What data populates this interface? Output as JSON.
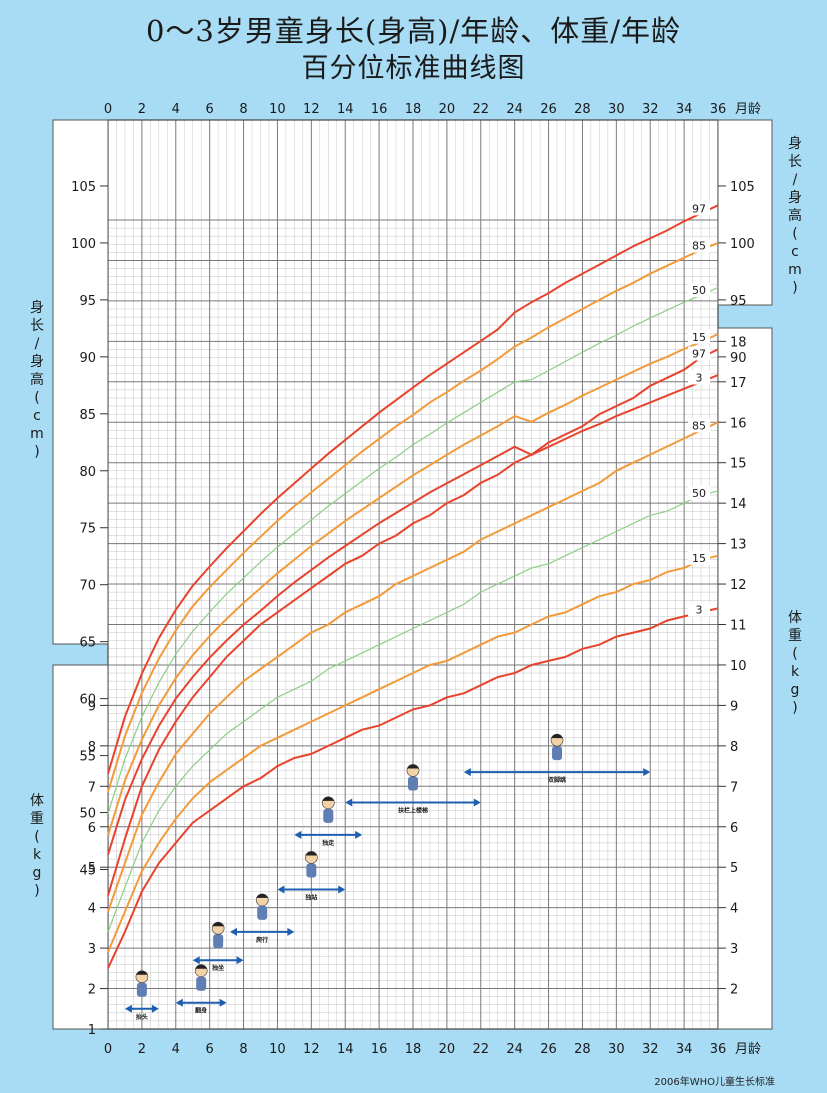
{
  "title_line1": "0～3岁男童身长(身高)/年龄、体重/年龄",
  "title_line2": "百分位标准曲线图",
  "source": "2006年WHO儿童生长标准",
  "colors": {
    "bg": "#a8dcf4",
    "plot": "#ffffff",
    "grid": "#9a9a9a",
    "p3_97": "#e8432d",
    "p15_85": "#f39a3a",
    "p50": "#8ccf86"
  },
  "chart_data": [
    {
      "type": "line",
      "panel": "length",
      "ylabel": "身长/身高 (cm)",
      "x_unit": "月龄",
      "xlim": [
        0,
        36
      ],
      "ylim": [
        45,
        105
      ],
      "x_ticks": [
        0,
        2,
        4,
        6,
        8,
        10,
        12,
        14,
        16,
        18,
        20,
        22,
        24,
        26,
        28,
        30,
        32,
        34,
        36
      ],
      "y_ticks_left": [
        45,
        50,
        55,
        60,
        65,
        70,
        75,
        80,
        85,
        90,
        95,
        100,
        105
      ],
      "y_ticks_right": [
        90,
        95,
        100,
        105
      ],
      "x": [
        0,
        1,
        2,
        3,
        4,
        5,
        6,
        7,
        8,
        9,
        10,
        11,
        12,
        13,
        14,
        15,
        16,
        17,
        18,
        19,
        20,
        21,
        22,
        23,
        24,
        25,
        26,
        27,
        28,
        29,
        30,
        31,
        32,
        33,
        34,
        35,
        36
      ],
      "series": [
        {
          "name": "97",
          "values": [
            53.4,
            58.4,
            62.2,
            65.3,
            67.8,
            69.9,
            71.6,
            73.2,
            74.7,
            76.2,
            77.6,
            78.9,
            80.2,
            81.5,
            82.7,
            83.9,
            85.1,
            86.2,
            87.3,
            88.4,
            89.4,
            90.4,
            91.4,
            92.4,
            93.9,
            94.8,
            95.6,
            96.5,
            97.3,
            98.1,
            98.9,
            99.7,
            100.4,
            101.1,
            101.9,
            102.6,
            103.3
          ]
        },
        {
          "name": "85",
          "values": [
            51.8,
            56.7,
            60.5,
            63.5,
            66.0,
            68.1,
            69.8,
            71.3,
            72.8,
            74.2,
            75.6,
            76.9,
            78.1,
            79.3,
            80.5,
            81.7,
            82.8,
            83.9,
            84.9,
            86.0,
            86.9,
            87.9,
            88.8,
            89.8,
            90.9,
            91.7,
            92.6,
            93.4,
            94.2,
            95.0,
            95.8,
            96.5,
            97.3,
            98.0,
            98.7,
            99.4,
            100.0
          ]
        },
        {
          "name": "50",
          "values": [
            49.9,
            54.7,
            58.4,
            61.4,
            63.9,
            65.9,
            67.6,
            69.2,
            70.6,
            72.0,
            73.3,
            74.5,
            75.7,
            76.9,
            78.0,
            79.1,
            80.2,
            81.2,
            82.3,
            83.2,
            84.2,
            85.1,
            86.0,
            86.9,
            87.8,
            88.0,
            88.8,
            89.6,
            90.4,
            91.2,
            91.9,
            92.7,
            93.4,
            94.1,
            94.8,
            95.4,
            96.1
          ]
        },
        {
          "name": "15",
          "values": [
            48.0,
            52.8,
            56.4,
            59.4,
            61.8,
            63.8,
            65.5,
            67.0,
            68.4,
            69.7,
            71.0,
            72.2,
            73.4,
            74.5,
            75.6,
            76.6,
            77.6,
            78.6,
            79.6,
            80.5,
            81.4,
            82.3,
            83.1,
            83.9,
            84.8,
            84.3,
            85.1,
            85.8,
            86.6,
            87.3,
            88.0,
            88.7,
            89.4,
            90.0,
            90.7,
            91.3,
            92.0
          ]
        },
        {
          "name": "3",
          "values": [
            46.3,
            51.1,
            54.7,
            57.6,
            60.0,
            61.9,
            63.6,
            65.1,
            66.5,
            67.7,
            69.0,
            70.2,
            71.3,
            72.4,
            73.4,
            74.4,
            75.4,
            76.3,
            77.2,
            78.1,
            78.9,
            79.7,
            80.5,
            81.3,
            82.1,
            81.4,
            82.1,
            82.8,
            83.5,
            84.1,
            84.8,
            85.4,
            86.0,
            86.6,
            87.2,
            87.8,
            88.4
          ]
        }
      ]
    },
    {
      "type": "line",
      "panel": "weight",
      "ylabel": "体重 (kg)",
      "x_unit": "月龄",
      "xlim": [
        0,
        36
      ],
      "ylim": [
        1,
        19
      ],
      "x_ticks": [
        0,
        2,
        4,
        6,
        8,
        10,
        12,
        14,
        16,
        18,
        20,
        22,
        24,
        26,
        28,
        30,
        32,
        34,
        36
      ],
      "y_ticks_left": [
        1,
        2,
        3,
        4,
        5,
        6,
        7,
        8,
        9
      ],
      "y_ticks_right": [
        2,
        3,
        4,
        5,
        6,
        7,
        8,
        9,
        10,
        11,
        12,
        13,
        14,
        15,
        16,
        17,
        18
      ],
      "x": [
        0,
        1,
        2,
        3,
        4,
        5,
        6,
        7,
        8,
        9,
        10,
        11,
        12,
        13,
        14,
        15,
        16,
        17,
        18,
        19,
        20,
        21,
        22,
        23,
        24,
        25,
        26,
        27,
        28,
        29,
        30,
        31,
        32,
        33,
        34,
        35,
        36
      ],
      "series": [
        {
          "name": "97",
          "values": [
            4.3,
            5.7,
            7.0,
            7.9,
            8.6,
            9.2,
            9.7,
            10.2,
            10.6,
            11.0,
            11.3,
            11.6,
            11.9,
            12.2,
            12.5,
            12.7,
            13.0,
            13.2,
            13.5,
            13.7,
            14.0,
            14.2,
            14.5,
            14.7,
            15.0,
            15.2,
            15.5,
            15.7,
            15.9,
            16.2,
            16.4,
            16.6,
            16.9,
            17.1,
            17.3,
            17.6,
            17.8
          ]
        },
        {
          "name": "85",
          "values": [
            3.9,
            5.1,
            6.3,
            7.1,
            7.8,
            8.3,
            8.8,
            9.2,
            9.6,
            9.9,
            10.2,
            10.5,
            10.8,
            11.0,
            11.3,
            11.5,
            11.7,
            12.0,
            12.2,
            12.4,
            12.6,
            12.8,
            13.1,
            13.3,
            13.5,
            13.7,
            13.9,
            14.1,
            14.3,
            14.5,
            14.8,
            15.0,
            15.2,
            15.4,
            15.6,
            15.8,
            16.0
          ]
        },
        {
          "name": "50",
          "values": [
            3.4,
            4.5,
            5.6,
            6.4,
            7.0,
            7.5,
            7.9,
            8.3,
            8.6,
            8.9,
            9.2,
            9.4,
            9.6,
            9.9,
            10.1,
            10.3,
            10.5,
            10.7,
            10.9,
            11.1,
            11.3,
            11.5,
            11.8,
            12.0,
            12.2,
            12.4,
            12.5,
            12.7,
            12.9,
            13.1,
            13.3,
            13.5,
            13.7,
            13.8,
            14.0,
            14.2,
            14.3
          ]
        },
        {
          "name": "15",
          "values": [
            2.9,
            3.9,
            4.9,
            5.6,
            6.2,
            6.7,
            7.1,
            7.4,
            7.7,
            8.0,
            8.2,
            8.4,
            8.6,
            8.8,
            9.0,
            9.2,
            9.4,
            9.6,
            9.8,
            10.0,
            10.1,
            10.3,
            10.5,
            10.7,
            10.8,
            11.0,
            11.2,
            11.3,
            11.5,
            11.7,
            11.8,
            12.0,
            12.1,
            12.3,
            12.4,
            12.6,
            12.7
          ]
        },
        {
          "name": "3",
          "values": [
            2.5,
            3.4,
            4.4,
            5.1,
            5.6,
            6.1,
            6.4,
            6.7,
            7.0,
            7.2,
            7.5,
            7.7,
            7.8,
            8.0,
            8.2,
            8.4,
            8.5,
            8.7,
            8.9,
            9.0,
            9.2,
            9.3,
            9.5,
            9.7,
            9.8,
            10.0,
            10.1,
            10.2,
            10.4,
            10.5,
            10.7,
            10.8,
            10.9,
            11.1,
            11.2,
            11.3,
            11.4
          ]
        }
      ]
    }
  ],
  "milestones": [
    {
      "label": "抬头",
      "range": [
        1.0,
        3.0
      ],
      "level": 1.5
    },
    {
      "label": "翻身",
      "range": [
        4.0,
        7.0
      ],
      "level": 1.65
    },
    {
      "label": "独坐",
      "range": [
        5.0,
        8.0
      ],
      "level": 2.7
    },
    {
      "label": "爬行",
      "range": [
        7.2,
        11.0
      ],
      "level": 3.4
    },
    {
      "label": "独站",
      "range": [
        10.0,
        14.0
      ],
      "level": 4.45
    },
    {
      "label": "独走",
      "range": [
        11.0,
        15.0
      ],
      "level": 5.8
    },
    {
      "label": "扶栏上楼梯",
      "range": [
        14.0,
        22.0
      ],
      "level": 6.6
    },
    {
      "label": "双脚跳",
      "range": [
        21.0,
        32.0
      ],
      "level": 7.35
    }
  ]
}
